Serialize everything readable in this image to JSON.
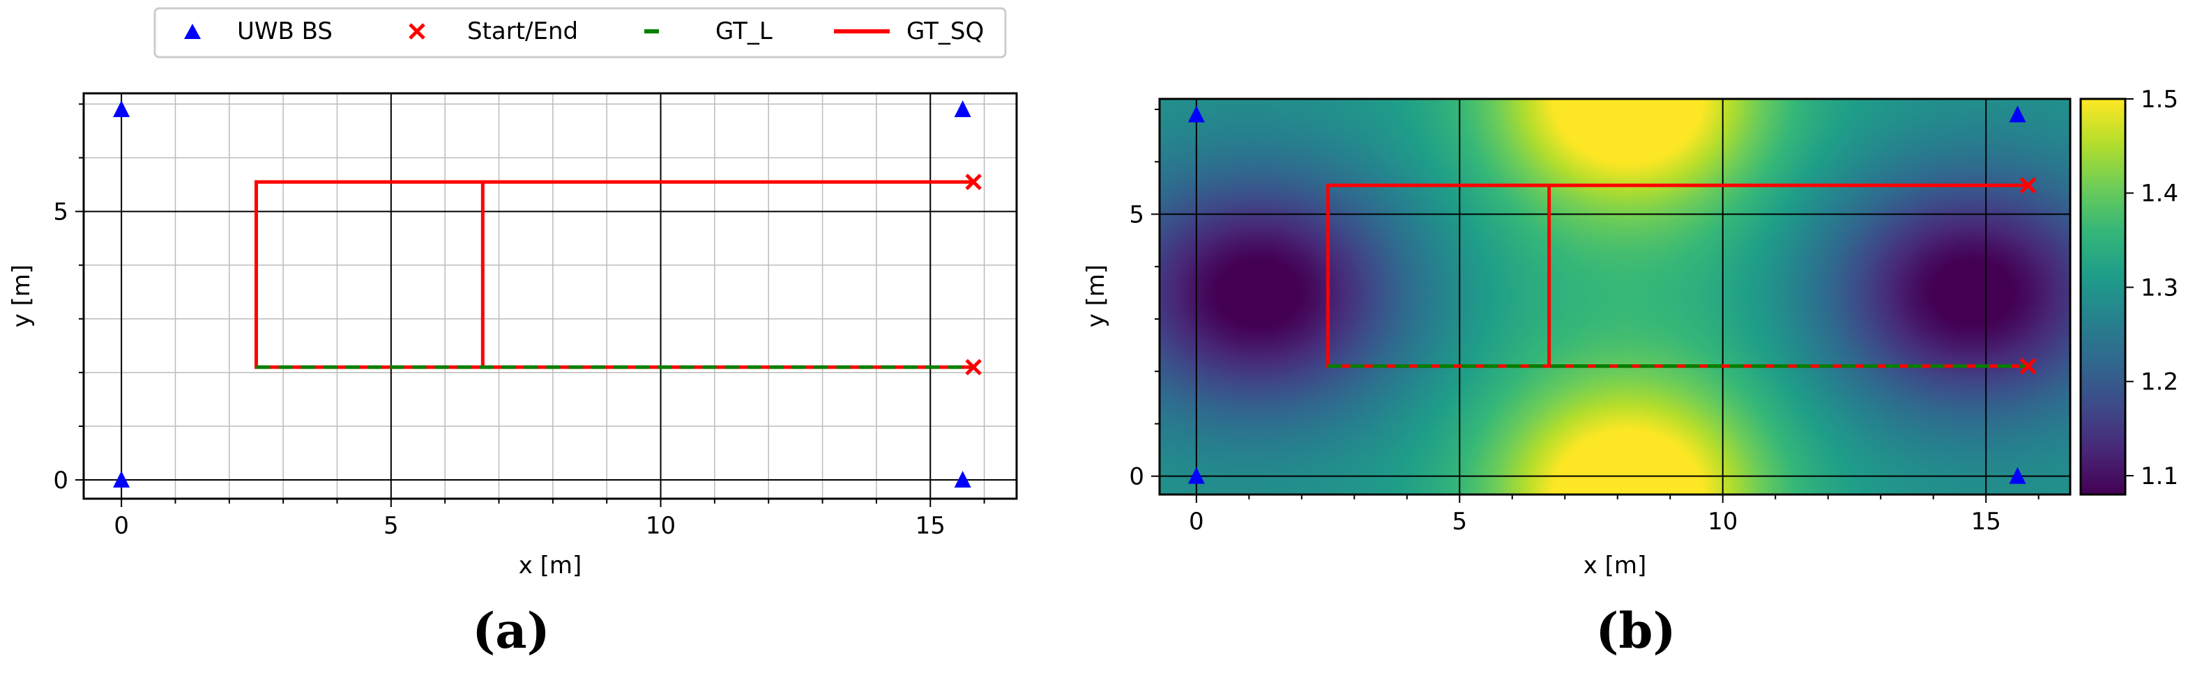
{
  "legend": {
    "entries": [
      {
        "label": "UWB BS",
        "marker": "triangle",
        "color": "#0000ff"
      },
      {
        "label": "Start/End",
        "marker": "x",
        "color": "#ff0000"
      },
      {
        "label": "GT_L",
        "marker": "dash",
        "color": "#008000"
      },
      {
        "label": "GT_SQ",
        "marker": "line",
        "color": "#ff0000"
      }
    ]
  },
  "colors": {
    "base_station": "#0000ff",
    "start_end": "#ff0000",
    "gt_l": "#008000",
    "gt_sq": "#ff0000",
    "major_grid": "#000000",
    "minor_grid": "#bbbbbb"
  },
  "chart_data": [
    {
      "type": "scatter",
      "panel_label": "(a)",
      "xlabel": "x [m]",
      "ylabel": "y [m]",
      "xlim": [
        -0.7,
        16.6
      ],
      "ylim": [
        -0.35,
        7.2
      ],
      "xticks": [
        0,
        5,
        10,
        15
      ],
      "yticks": [
        0,
        5
      ],
      "grid": "major and minor",
      "base_stations": [
        [
          0,
          6.9
        ],
        [
          15.6,
          6.9
        ],
        [
          0,
          0
        ],
        [
          15.6,
          0
        ]
      ],
      "start_end": [
        [
          15.8,
          5.55
        ],
        [
          15.8,
          2.1
        ]
      ],
      "gt_l": [
        [
          2.5,
          2.1
        ],
        [
          15.8,
          2.1
        ]
      ],
      "gt_sq": [
        [
          15.8,
          5.55
        ],
        [
          2.5,
          5.55
        ],
        [
          2.5,
          2.1
        ],
        [
          6.7,
          2.1
        ],
        [
          6.7,
          5.55
        ],
        [
          6.7,
          2.1
        ],
        [
          15.8,
          2.1
        ]
      ]
    },
    {
      "type": "heatmap",
      "panel_label": "(b)",
      "xlabel": "x [m]",
      "ylabel": "y [m]",
      "xlim": [
        -0.7,
        16.6
      ],
      "ylim": [
        -0.35,
        7.2
      ],
      "xticks": [
        0,
        5,
        10,
        15
      ],
      "yticks": [
        0,
        5
      ],
      "grid": "major",
      "colorbar": {
        "ticks": [
          1.1,
          1.2,
          1.3,
          1.4,
          1.5
        ],
        "tick_labels": [
          "1.1",
          "1.2",
          "1.3",
          "1.4",
          "1.5"
        ],
        "range": [
          1.08,
          1.5
        ],
        "colormap": "viridis"
      },
      "field_peaks": [
        {
          "x": 1.2,
          "y": 3.5,
          "value": 1.08
        },
        {
          "x": 14.7,
          "y": 3.5,
          "value": 1.08
        },
        {
          "x": 8.2,
          "y": 7.2,
          "value": 1.5
        },
        {
          "x": 8.2,
          "y": -0.35,
          "value": 1.5
        }
      ],
      "base_stations": [
        [
          0,
          6.9
        ],
        [
          15.6,
          6.9
        ],
        [
          0,
          0
        ],
        [
          15.6,
          0
        ]
      ],
      "start_end": [
        [
          15.8,
          5.55
        ],
        [
          15.8,
          2.1
        ]
      ],
      "gt_l": [
        [
          2.5,
          2.1
        ],
        [
          15.8,
          2.1
        ]
      ],
      "gt_sq": [
        [
          15.8,
          5.55
        ],
        [
          2.5,
          5.55
        ],
        [
          2.5,
          2.1
        ],
        [
          6.7,
          2.1
        ],
        [
          6.7,
          5.55
        ],
        [
          6.7,
          2.1
        ],
        [
          15.8,
          2.1
        ]
      ]
    }
  ]
}
